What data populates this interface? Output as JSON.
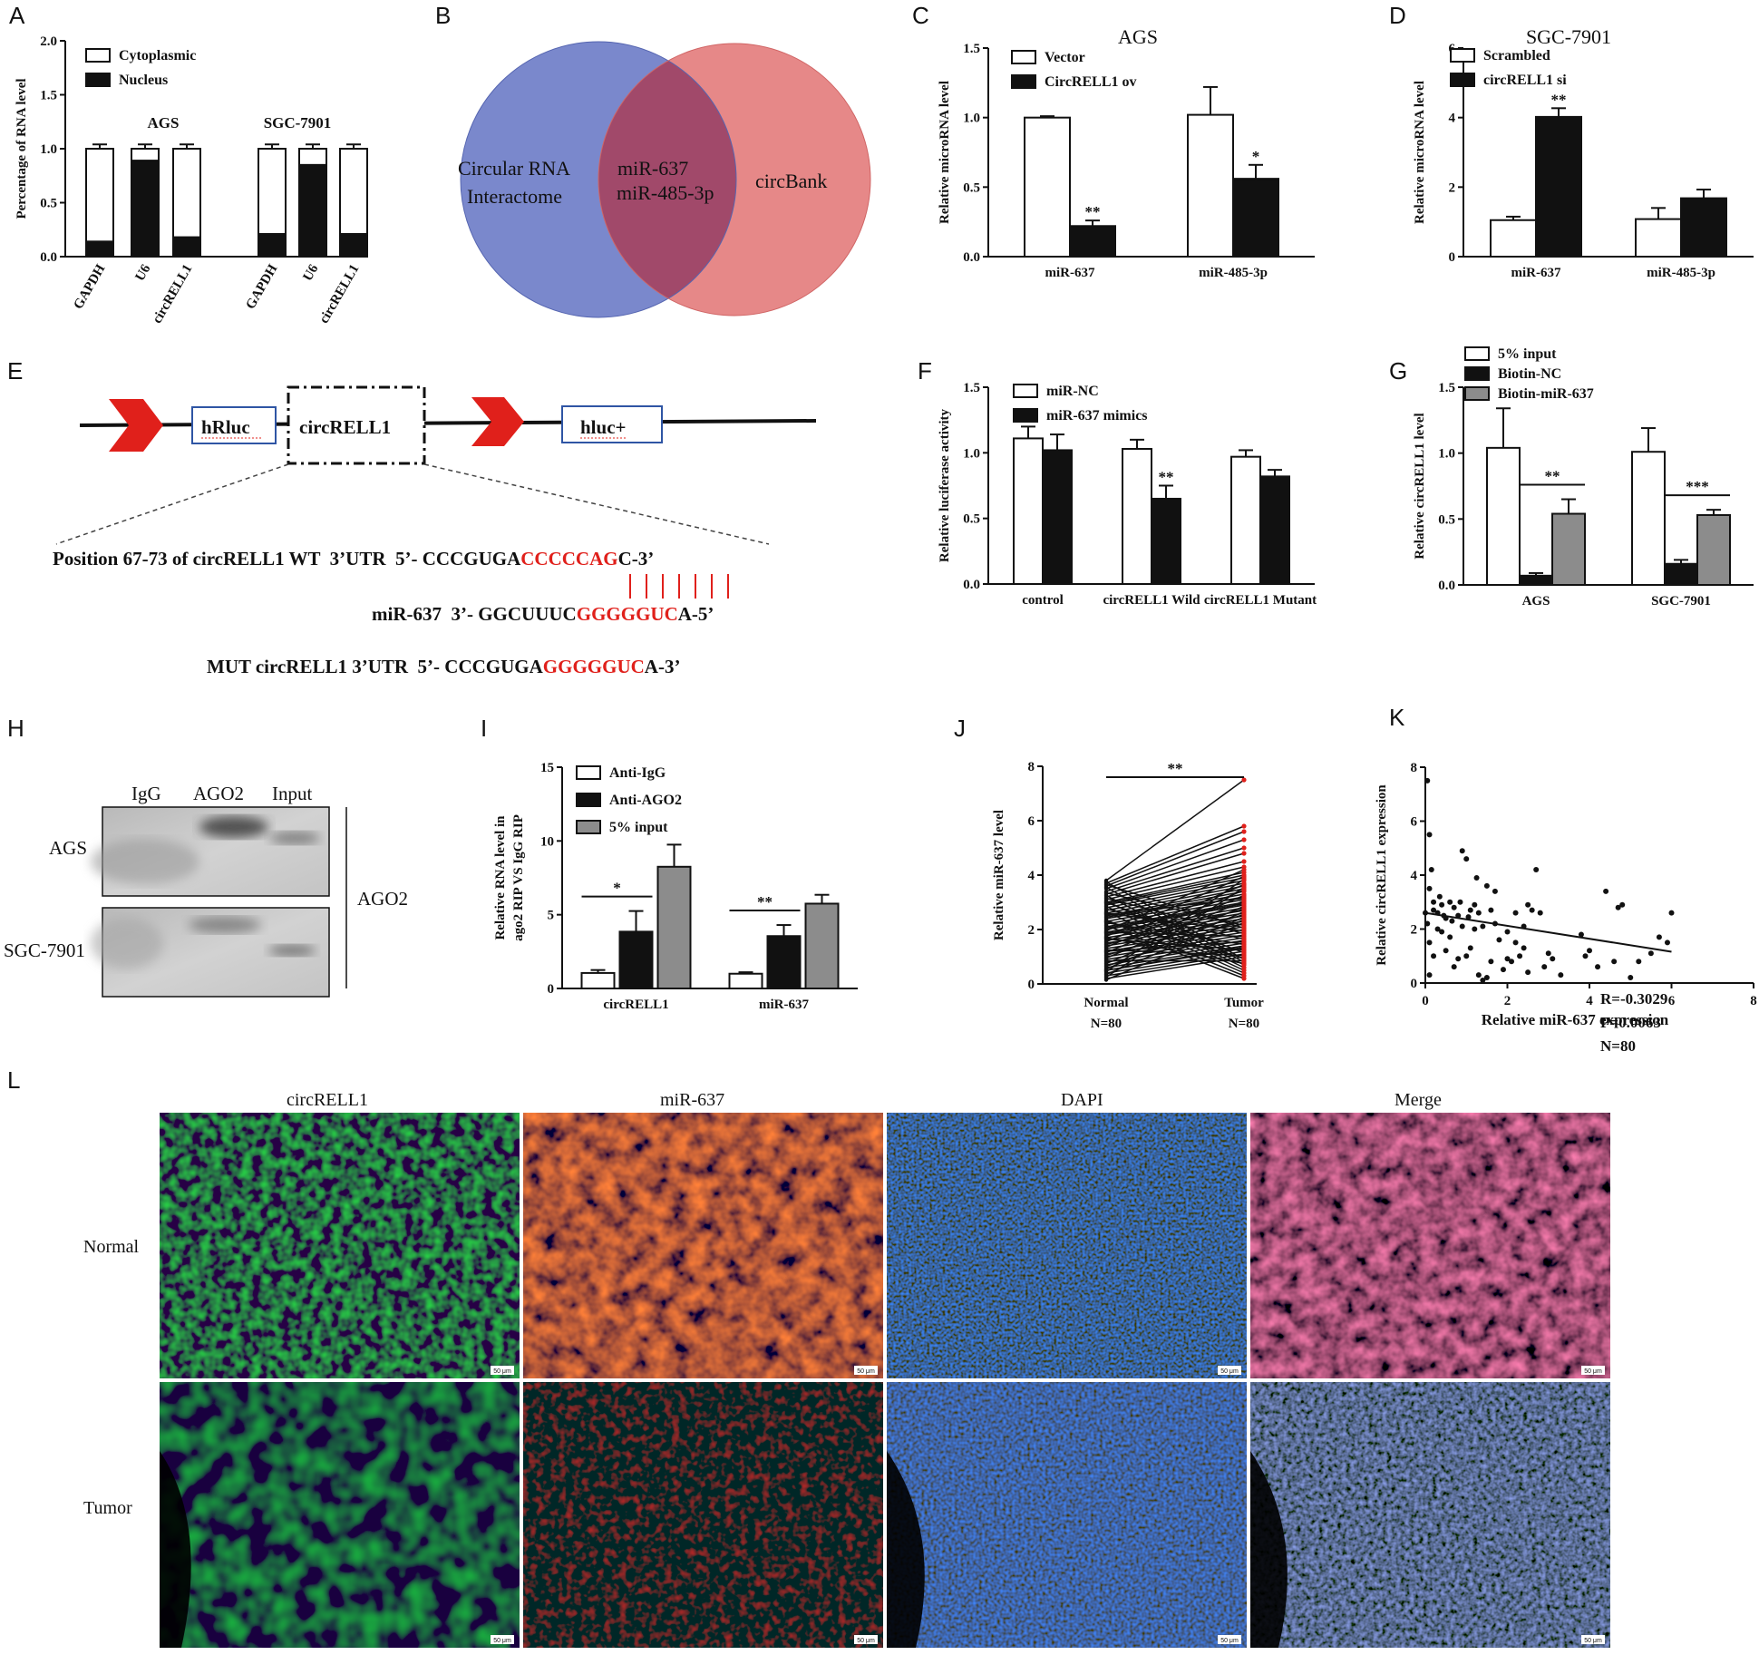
{
  "panels": {
    "A": {
      "label": "A"
    },
    "B": {
      "label": "B"
    },
    "C": {
      "label": "C"
    },
    "D": {
      "label": "D"
    },
    "E": {
      "label": "E"
    },
    "F": {
      "label": "F"
    },
    "G": {
      "label": "G"
    },
    "H": {
      "label": "H"
    },
    "I": {
      "label": "I"
    },
    "J": {
      "label": "J"
    },
    "K": {
      "label": "K"
    },
    "L": {
      "label": "L"
    }
  },
  "venn": {
    "left": [
      "Circular RNA",
      "Interactome"
    ],
    "overlap": [
      "miR-637",
      "miR-485-3p"
    ],
    "right": "circBank",
    "colors": {
      "left": "#6b7bc6",
      "right": "#e37b7b",
      "overlap": "#a1496a"
    }
  },
  "construct": {
    "box1": "hRluc",
    "box2": "circRELL1",
    "box3": "hluc+"
  },
  "sequences": {
    "wt": {
      "prefix": "Position 67-73 of circRELL1 WT  3’UTR  5’- CCCGUGA",
      "red": "CCCCCAG",
      "suffix": "C-3’"
    },
    "mir": {
      "prefix": "miR-637  3’- GGCUUUC",
      "red": "GGGGGUC",
      "suffix": "A-5’"
    },
    "mut": {
      "prefix": "MUT circRELL1 3’UTR  5’- CCCGUGA",
      "red": "GGGGGUC",
      "suffix": "A-3’"
    }
  },
  "western": {
    "lanes": [
      "IgG",
      "AGO2",
      "Input"
    ],
    "rows": [
      "AGS",
      "SGC-7901"
    ],
    "protein": "AGO2"
  },
  "micrographs": {
    "columns": [
      "circRELL1",
      "miR-637",
      "DAPI",
      "Merge"
    ],
    "rows": [
      "Normal",
      "Tumor"
    ],
    "scale_bar": "50 μm"
  },
  "colors": {
    "white_bar": "#ffffff",
    "black_bar": "#111111",
    "gray_bar": "#8c8c8c",
    "red": "#e0201b"
  },
  "chart_data": [
    {
      "panel": "A",
      "type": "bar",
      "stacked": true,
      "ylabel": "Percentage of RNA level",
      "ylim": [
        0,
        2.0
      ],
      "yticks": [
        "0.0",
        "0.5",
        "1.0",
        "1.5",
        "2.0"
      ],
      "categories": [
        "GAPDH",
        "U6",
        "circRELL1",
        "GAPDH",
        "U6",
        "circRELL1"
      ],
      "groups": [
        "AGS",
        "SGC-7901"
      ],
      "series": [
        {
          "name": "Cytoplasmic",
          "values": [
            0.86,
            0.11,
            0.82,
            0.79,
            0.15,
            0.79
          ]
        },
        {
          "name": "Nucleus",
          "values": [
            0.14,
            0.89,
            0.18,
            0.21,
            0.85,
            0.21
          ]
        }
      ]
    },
    {
      "panel": "C",
      "type": "bar",
      "title": "AGS",
      "ylabel": "Relative microRNA level",
      "ylim": [
        0,
        1.5
      ],
      "yticks": [
        "0.0",
        "0.5",
        "1.0",
        "1.5"
      ],
      "categories": [
        "miR-637",
        "miR-485-3p"
      ],
      "series": [
        {
          "name": "Vector",
          "values": [
            1.0,
            1.02
          ]
        },
        {
          "name": "CircRELL1 ov",
          "values": [
            0.22,
            0.56
          ]
        }
      ],
      "errors": [
        [
          0.01,
          0.2
        ],
        [
          0.04,
          0.1
        ]
      ],
      "stars": [
        "**",
        "*"
      ]
    },
    {
      "panel": "D",
      "type": "bar",
      "title": "SGC-7901",
      "ylabel": "Relative microRNA level",
      "ylim": [
        0,
        6
      ],
      "yticks": [
        "0",
        "2",
        "4",
        "6"
      ],
      "categories": [
        "miR-637",
        "miR-485-3p"
      ],
      "series": [
        {
          "name": "Scrambled",
          "values": [
            1.05,
            1.08
          ]
        },
        {
          "name": "circRELL1 si",
          "values": [
            4.02,
            1.68
          ]
        }
      ],
      "errors": [
        [
          0.1,
          0.32
        ],
        [
          0.25,
          0.25
        ]
      ],
      "stars": [
        "**",
        ""
      ]
    },
    {
      "panel": "F",
      "type": "bar",
      "ylabel": "Relative luciferase activity",
      "ylim": [
        0,
        1.5
      ],
      "yticks": [
        "0.0",
        "0.5",
        "1.0",
        "1.5"
      ],
      "categories": [
        "control",
        "circRELL1 Wild",
        "circRELL1 Mutant"
      ],
      "series": [
        {
          "name": "miR-NC",
          "values": [
            1.11,
            1.03,
            0.97
          ]
        },
        {
          "name": "miR-637 mimics",
          "values": [
            1.02,
            0.65,
            0.82
          ]
        }
      ],
      "errors": [
        [
          0.09,
          0.07,
          0.05
        ],
        [
          0.12,
          0.1,
          0.05
        ]
      ],
      "stars": [
        "",
        "**",
        ""
      ]
    },
    {
      "panel": "G",
      "type": "bar",
      "ylabel": "Relative circRELL1 level",
      "ylim": [
        0,
        1.5
      ],
      "yticks": [
        "0.0",
        "0.5",
        "1.0",
        "1.5"
      ],
      "categories": [
        "AGS",
        "SGC-7901"
      ],
      "series": [
        {
          "name": "5% input",
          "values": [
            1.04,
            1.01
          ]
        },
        {
          "name": "Biotin-NC",
          "values": [
            0.07,
            0.16
          ]
        },
        {
          "name": "Biotin-miR-637",
          "values": [
            0.54,
            0.53
          ]
        }
      ],
      "errors": [
        [
          0.3,
          0.18
        ],
        [
          0.02,
          0.03
        ],
        [
          0.11,
          0.04
        ]
      ],
      "stars": [
        "**",
        "***"
      ]
    },
    {
      "panel": "I",
      "type": "bar",
      "ylabel": [
        "Relative RNA level in",
        "ago2 RIP VS IgG RIP"
      ],
      "ylim": [
        0,
        15
      ],
      "yticks": [
        "0",
        "5",
        "10",
        "15"
      ],
      "categories": [
        "circRELL1",
        "miR-637"
      ],
      "series": [
        {
          "name": "Anti-IgG",
          "values": [
            1.05,
            1.0
          ]
        },
        {
          "name": "Anti-AGO2",
          "values": [
            3.85,
            3.55
          ]
        },
        {
          "name": "5% input",
          "values": [
            8.25,
            5.75
          ]
        }
      ],
      "errors": [
        [
          0.2,
          0.1
        ],
        [
          1.4,
          0.75
        ],
        [
          1.5,
          0.6
        ]
      ],
      "stars": [
        "*",
        "**"
      ]
    },
    {
      "panel": "J",
      "type": "line",
      "ylabel": "Relative miR-637  level",
      "ylim": [
        0,
        8
      ],
      "yticks": [
        "0",
        "2",
        "4",
        "6",
        "8"
      ],
      "categories": [
        "Normal",
        "Tumor"
      ],
      "category_sublabels": [
        "N=80",
        "N=80"
      ],
      "n": 80,
      "star": "**",
      "normal": [
        3.8,
        3.7,
        3.6,
        3.5,
        3.4,
        3.3,
        3.2,
        3.1,
        3.0,
        2.95,
        2.9,
        2.8,
        2.7,
        2.6,
        2.5,
        2.45,
        2.4,
        2.3,
        2.2,
        2.1,
        2.0,
        1.9,
        1.85,
        1.8,
        1.7,
        1.6,
        1.5,
        1.4,
        1.3,
        1.2,
        1.1,
        1.0,
        0.9,
        0.8,
        0.7,
        0.6,
        0.5,
        0.4,
        0.3,
        0.2,
        3.75,
        3.55,
        3.25,
        3.05,
        2.85,
        2.65,
        2.35,
        2.15,
        1.95,
        1.75,
        1.55,
        1.35,
        1.15,
        0.95,
        0.75,
        0.55,
        0.35,
        0.15,
        3.65,
        3.15,
        2.75,
        2.25,
        1.65,
        1.25,
        0.85,
        0.45,
        0.25,
        2.55,
        2.05,
        1.45,
        1.05,
        0.65,
        3.35,
        2.6,
        1.9,
        1.2,
        0.5,
        3.0,
        2.3,
        1.7
      ],
      "tumor": [
        7.5,
        5.8,
        5.6,
        5.3,
        5.0,
        4.8,
        4.5,
        4.3,
        4.1,
        4.0,
        3.9,
        3.8,
        3.7,
        3.6,
        3.5,
        3.4,
        3.3,
        3.2,
        3.1,
        3.0,
        2.9,
        2.8,
        2.7,
        2.6,
        2.5,
        2.4,
        2.3,
        2.2,
        2.1,
        2.0,
        1.9,
        1.8,
        1.7,
        1.6,
        1.5,
        1.4,
        1.3,
        1.2,
        1.1,
        1.0,
        0.9,
        0.8,
        0.7,
        0.6,
        0.5,
        0.4,
        0.3,
        0.2,
        4.2,
        3.95,
        3.65,
        3.45,
        3.25,
        3.05,
        2.85,
        2.65,
        2.45,
        2.25,
        2.05,
        1.85,
        1.65,
        1.45,
        1.25,
        1.05,
        0.85,
        3.85,
        3.55,
        3.15,
        2.95,
        2.75,
        2.55,
        2.35,
        2.15,
        1.95,
        1.75,
        1.55,
        1.35,
        1.15,
        0.95,
        0.75
      ]
    },
    {
      "panel": "K",
      "type": "scatter",
      "xlabel": "Relative miR-637 expression",
      "ylabel": "Relative circRELL1  expression",
      "xlim": [
        0,
        8
      ],
      "ylim": [
        0,
        8
      ],
      "xticks": [
        "0",
        "2",
        "4",
        "6",
        "8"
      ],
      "yticks": [
        "0",
        "2",
        "4",
        "6",
        "8"
      ],
      "annotations": [
        "R=-0.3029",
        "P=0.0063",
        "N=80"
      ],
      "fit": {
        "slope": -0.24,
        "intercept": 2.6
      },
      "points": [
        [
          0.05,
          7.5
        ],
        [
          0.1,
          5.5
        ],
        [
          0.15,
          4.2
        ],
        [
          0.1,
          3.5
        ],
        [
          0.2,
          3.0
        ],
        [
          0.0,
          2.6
        ],
        [
          0.05,
          2.2
        ],
        [
          0.1,
          1.5
        ],
        [
          0.2,
          1.0
        ],
        [
          0.1,
          0.3
        ],
        [
          0.3,
          2.6
        ],
        [
          0.4,
          2.9
        ],
        [
          0.5,
          2.4
        ],
        [
          0.6,
          3.0
        ],
        [
          0.7,
          2.8
        ],
        [
          0.8,
          2.5
        ],
        [
          0.9,
          4.9
        ],
        [
          1.0,
          4.6
        ],
        [
          1.1,
          2.7
        ],
        [
          1.2,
          2.9
        ],
        [
          1.3,
          2.6
        ],
        [
          1.3,
          0.3
        ],
        [
          1.4,
          0.1
        ],
        [
          1.5,
          0.2
        ],
        [
          1.5,
          3.6
        ],
        [
          1.6,
          2.7
        ],
        [
          1.7,
          2.2
        ],
        [
          1.8,
          1.6
        ],
        [
          1.9,
          0.5
        ],
        [
          2.0,
          0.9
        ],
        [
          2.1,
          0.8
        ],
        [
          2.2,
          2.6
        ],
        [
          2.3,
          1.0
        ],
        [
          2.4,
          2.1
        ],
        [
          2.5,
          2.9
        ],
        [
          2.6,
          2.7
        ],
        [
          2.7,
          4.2
        ],
        [
          2.8,
          2.6
        ],
        [
          2.9,
          0.6
        ],
        [
          3.0,
          1.1
        ],
        [
          0.4,
          1.9
        ],
        [
          0.6,
          1.7
        ],
        [
          0.9,
          2.1
        ],
        [
          1.1,
          1.3
        ],
        [
          0.3,
          2.0
        ],
        [
          0.5,
          1.2
        ],
        [
          0.8,
          0.9
        ],
        [
          1.0,
          1.0
        ],
        [
          1.2,
          2.0
        ],
        [
          1.7,
          3.4
        ],
        [
          2.0,
          1.9
        ],
        [
          2.5,
          0.4
        ],
        [
          3.3,
          0.3
        ],
        [
          3.8,
          1.8
        ],
        [
          3.9,
          1.0
        ],
        [
          4.0,
          1.2
        ],
        [
          4.2,
          0.6
        ],
        [
          4.4,
          3.4
        ],
        [
          4.6,
          0.8
        ],
        [
          4.7,
          2.8
        ],
        [
          4.8,
          2.9
        ],
        [
          5.0,
          0.2
        ],
        [
          5.2,
          0.8
        ],
        [
          5.5,
          1.1
        ],
        [
          5.7,
          1.7
        ],
        [
          6.0,
          2.6
        ],
        [
          5.9,
          1.5
        ],
        [
          0.2,
          2.7
        ],
        [
          0.7,
          0.6
        ],
        [
          1.4,
          2.1
        ],
        [
          1.6,
          0.8
        ],
        [
          2.2,
          1.5
        ],
        [
          3.1,
          0.9
        ],
        [
          0.35,
          3.2
        ],
        [
          0.45,
          2.5
        ],
        [
          0.65,
          2.3
        ],
        [
          0.85,
          3.0
        ],
        [
          1.05,
          2.45
        ],
        [
          1.25,
          3.9
        ],
        [
          2.4,
          1.3
        ]
      ]
    }
  ]
}
